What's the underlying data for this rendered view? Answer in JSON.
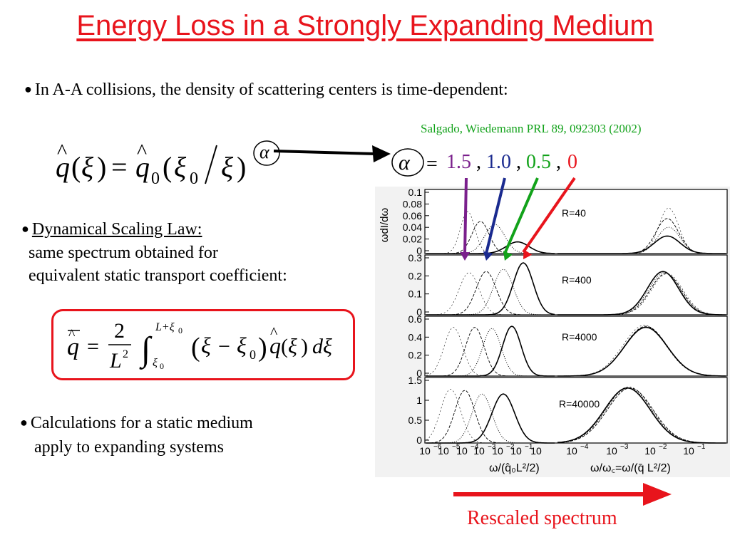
{
  "title": "Energy Loss in a Strongly Expanding Medium",
  "bullets": {
    "b1": "In A-A collisions, the density of scattering centers is time-dependent:",
    "b2_title": "Dynamical Scaling Law:",
    "b2_line1": "same spectrum obtained for",
    "b2_line2": "equivalent static transport coefficient:",
    "b3_line1": "Calculations for a static medium",
    "b3_line2": "apply to expanding systems"
  },
  "reference": "Salgado, Wiedemann PRL 89, 092303 (2002)",
  "alpha_values": {
    "eq": "=",
    "v1": "1.5",
    "c1": "#7a1f8c",
    "v2": "1.0",
    "c2": "#1a2a8f",
    "v3": "0.5",
    "c3": "#12a21a",
    "v4": "0",
    "c4": "#e8141c",
    "sep": ","
  },
  "formula1": {
    "q": "q",
    "xi": "ξ",
    "eq": "=",
    "q0": "q",
    "sub0": "0",
    "alpha": "α"
  },
  "formula2": {
    "q": "q",
    "eq": "=",
    "num": "2",
    "den": "L",
    "den_exp": "2",
    "upper": "L+ξ",
    "upper_sub": "0",
    "lower": "ξ",
    "lower_sub": "0",
    "xi": "ξ",
    "minus": "−",
    "sub0": "0",
    "dxi": "dξ"
  },
  "chart_data": {
    "type": "line",
    "ylabel": "ωdI/dω",
    "xlabel_left": "ω/(q̂₀L²/2)",
    "xlabel_right": "ω/ω꜀=ω/(q̄ L²/2)",
    "x_tick_labels_left": [
      "10",
      "10",
      "10",
      "10",
      "10",
      "10",
      "10"
    ],
    "x_tick_exponents_left": [
      "−6",
      "−5",
      "−4",
      "−3",
      "−2",
      "−1",
      ""
    ],
    "x_tick_labels_right": [
      "10",
      "10",
      "10",
      "10"
    ],
    "x_tick_exponents_right": [
      "−4",
      "−3",
      "−2",
      "−1"
    ],
    "panels": [
      {
        "label": "R=40",
        "y_ticks": [
          "0.1",
          "0.08",
          "0.06",
          "0.04",
          "0.02",
          "0"
        ],
        "ylim": [
          0,
          0.1
        ]
      },
      {
        "label": "R=400",
        "y_ticks": [
          "0.3",
          "0.2",
          "0.1",
          "0"
        ],
        "ylim": [
          0,
          0.3
        ]
      },
      {
        "label": "R=4000",
        "y_ticks": [
          "0.6",
          "0.4",
          "0.2",
          "0"
        ],
        "ylim": [
          0,
          0.6
        ]
      },
      {
        "label": "R=40000",
        "y_ticks": [
          "1.5",
          "1",
          "0.5",
          "0"
        ],
        "ylim": [
          0,
          1.5
        ]
      }
    ],
    "series": [
      {
        "name": "1.5",
        "color": "#7a1f8c"
      },
      {
        "name": "1.0",
        "color": "#1a2a8f"
      },
      {
        "name": "0.5",
        "color": "#12a21a"
      },
      {
        "name": "0",
        "color": "#e8141c"
      }
    ]
  },
  "caption": "Rescaled spectrum"
}
